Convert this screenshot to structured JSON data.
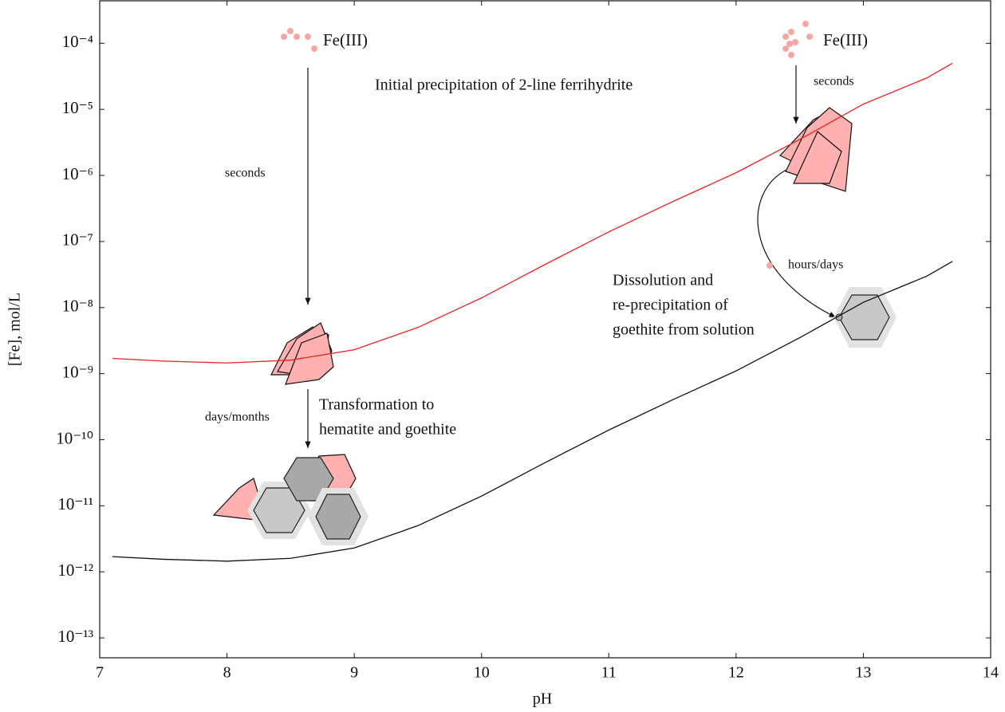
{
  "chart_data": {
    "type": "line",
    "xlabel": "pH",
    "ylabel": "[Fe], mol/L",
    "log_y": true,
    "grid": false,
    "x": [
      7.1,
      7.5,
      8,
      8.5,
      9,
      9.5,
      10,
      10.5,
      11,
      11.5,
      12,
      12.5,
      13,
      13.5,
      13.7
    ],
    "series": [
      {
        "color": "#e8231f",
        "values": [
          1.7e-09,
          1.55e-09,
          1.45e-09,
          1.6e-09,
          2.3e-09,
          5e-09,
          1.4e-08,
          4.5e-08,
          1.4e-07,
          4e-07,
          1.1e-06,
          3.5e-06,
          1.2e-05,
          3e-05,
          5e-05
        ]
      },
      {
        "color": "#111111",
        "values": [
          1.7e-12,
          1.55e-12,
          1.45e-12,
          1.6e-12,
          2.3e-12,
          5e-12,
          1.4e-11,
          4.5e-11,
          1.4e-10,
          4e-10,
          1.1e-09,
          3.5e-09,
          1.2e-08,
          3e-08,
          5e-08
        ]
      }
    ],
    "xlim": [
      7,
      14
    ],
    "xticks": [
      7,
      8,
      9,
      10,
      11,
      12,
      13,
      14
    ],
    "ylim": [
      5e-14,
      0.00044
    ],
    "yticks": [
      {
        "value": 1e-13,
        "label": "10⁻¹³"
      },
      {
        "value": 1e-12,
        "label": "10⁻¹²"
      },
      {
        "value": 1e-11,
        "label": "10⁻¹¹"
      },
      {
        "value": 1e-10,
        "label": "10⁻¹⁰"
      },
      {
        "value": 1e-09,
        "label": "10⁻⁹"
      },
      {
        "value": 1e-08,
        "label": "10⁻⁸"
      },
      {
        "value": 1e-07,
        "label": "10⁻⁷"
      },
      {
        "value": 1e-06,
        "label": "10⁻⁶"
      },
      {
        "value": 1e-05,
        "label": "10⁻⁵"
      },
      {
        "value": 0.0001,
        "label": "10⁻⁴"
      }
    ],
    "annotations": [
      [
        "Fe(III)"
      ],
      [
        "Fe(III)"
      ],
      [
        "Initial precipitation of 2-line ferrihydrite"
      ],
      [
        "seconds"
      ],
      [
        "seconds"
      ],
      [
        "days/months"
      ],
      [
        "Transformation to",
        "hematite and goethite"
      ],
      [
        "hours/days"
      ],
      [
        "Dissolution and",
        "re-precipitation of",
        "goethite from solution"
      ]
    ]
  }
}
